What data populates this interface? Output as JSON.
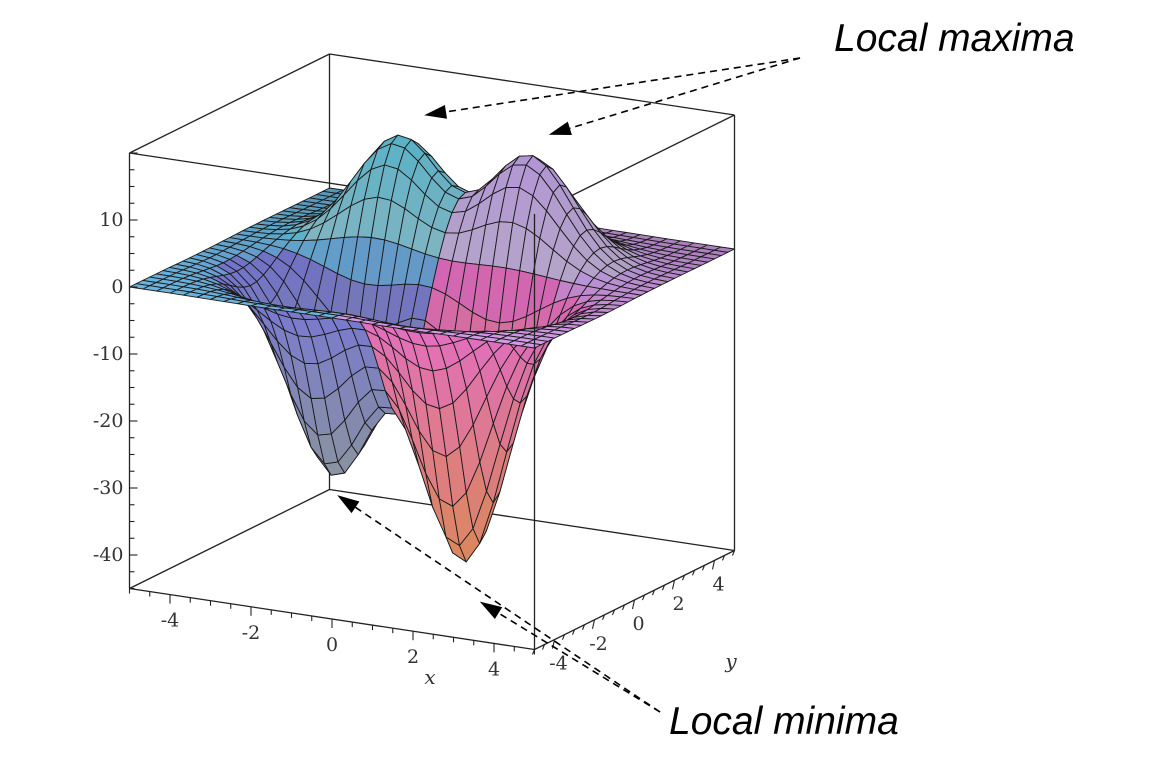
{
  "chart_data": {
    "type": "surface3d",
    "function_shape": "two Gaussian peaks (local maxima) at the back and two Gaussian wells (local minima) at the front over a 10x10 grid",
    "x": {
      "label": "x",
      "range": [
        -5,
        5
      ],
      "ticks": [
        "-4",
        "-2",
        "0",
        "2",
        "4"
      ]
    },
    "y": {
      "label": "y",
      "range": [
        -5,
        5
      ],
      "ticks": [
        "-4",
        "-2",
        "0",
        "2",
        "4"
      ]
    },
    "z": {
      "label": "",
      "range": [
        -45,
        20
      ],
      "ticks": [
        "10",
        "0",
        "-10",
        "-20",
        "-30",
        "-40"
      ]
    },
    "extrema": {
      "maxima": [
        {
          "x": -1.6,
          "y": 1.6,
          "z": 16
        },
        {
          "x": 1.6,
          "y": 1.6,
          "z": 16
        }
      ],
      "minima": [
        {
          "x": -1.6,
          "y": -1.6,
          "z": -30
        },
        {
          "x": 1.6,
          "y": -1.6,
          "z": -40
        }
      ]
    },
    "annotations": [
      {
        "text": "Local maxima",
        "targets": [
          "maxima"
        ]
      },
      {
        "text": "Local minima",
        "targets": [
          "minima"
        ]
      }
    ],
    "grid": false,
    "colormap": [
      "#66c8e0",
      "#c9a9f0",
      "#e870c8",
      "#e89060",
      "#7a7ad8",
      "#9aa89a"
    ]
  }
}
